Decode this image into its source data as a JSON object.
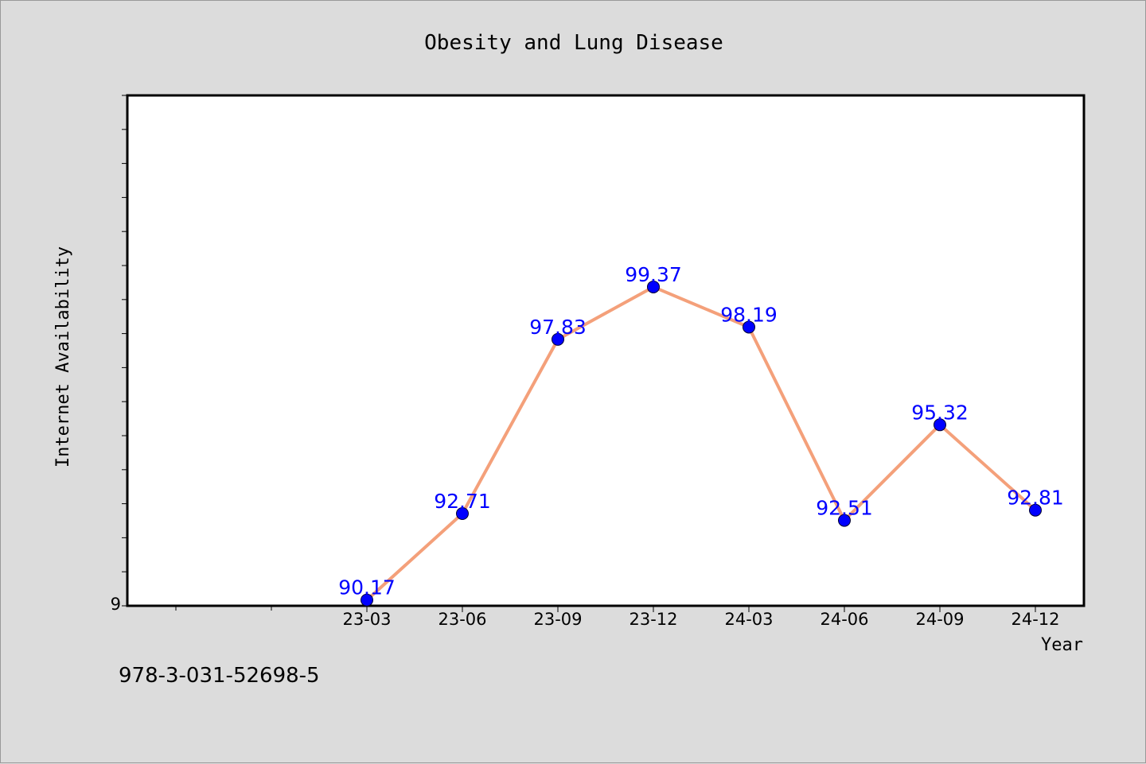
{
  "chart_data": {
    "type": "line",
    "title": "Obesity and Lung Disease",
    "xlabel": "Year",
    "ylabel": "Internet Availability",
    "categories": [
      "23-03",
      "23-06",
      "23-09",
      "23-12",
      "24-03",
      "24-06",
      "24-09",
      "24-12"
    ],
    "series": [
      {
        "values": [
          90.17,
          92.71,
          97.83,
          99.37,
          98.19,
          92.51,
          95.32,
          92.81
        ],
        "labels": [
          "90.17",
          "92.71",
          "97.83",
          "99.37",
          "98.19",
          "92.51",
          "95.32",
          "92.81"
        ]
      }
    ],
    "y_tick_labels": [
      "9"
    ],
    "ylim": [
      90,
      105
    ],
    "grid": false,
    "colors": {
      "line": "#f4a07a",
      "marker": "#0000ff",
      "labels": "#0000ff",
      "background": "#dcdcdc",
      "plot_background": "#ffffff"
    }
  },
  "footnote": "978-3-031-52698-5"
}
